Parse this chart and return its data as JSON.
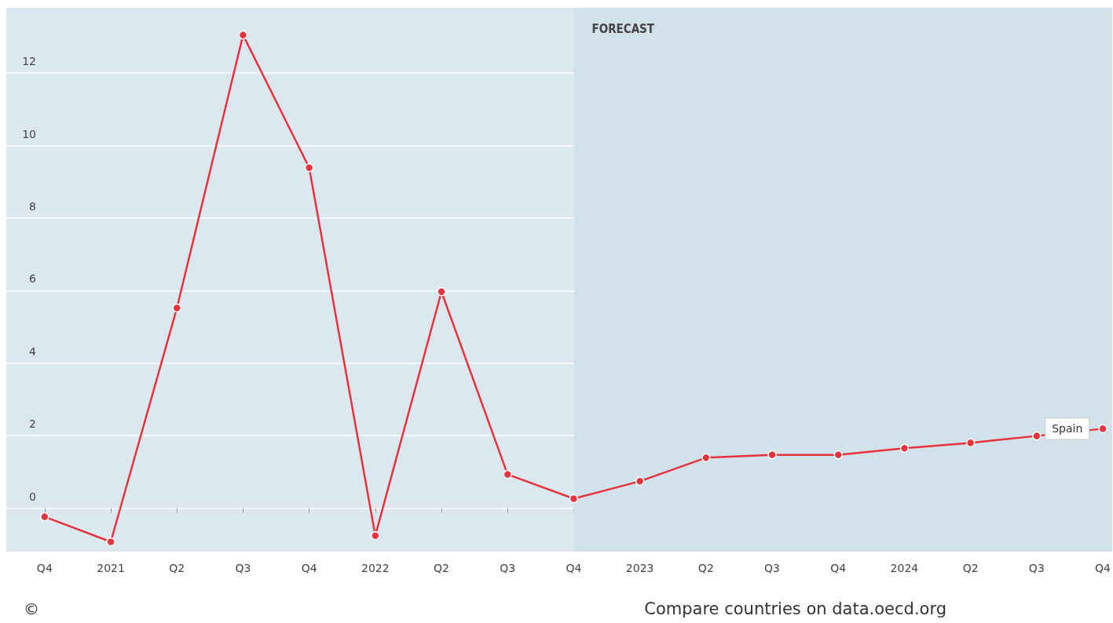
{
  "chart_data": {
    "type": "line",
    "x": [
      2020.75,
      2021,
      2021.25,
      2021.5,
      2021.75,
      2022,
      2022.25,
      2022.5,
      2022.75,
      2023,
      2023.25,
      2023.5,
      2023.75,
      2024,
      2024.25,
      2024.5,
      2024.75
    ],
    "series": [
      {
        "name": "Spain",
        "color": "#e8333d",
        "values": [
          -0.24,
          -0.93,
          5.52,
          13.05,
          9.39,
          -0.76,
          5.97,
          0.93,
          0.26,
          0.74,
          1.39,
          1.47,
          1.47,
          1.65,
          1.8,
          1.99,
          2.19
        ]
      }
    ],
    "xlim": [
      2020.605,
      2024.786
    ],
    "xticks": [
      {
        "value": 2020.75,
        "label": "Q4"
      },
      {
        "value": 2021,
        "label": "2021"
      },
      {
        "value": 2021.25,
        "label": "Q2"
      },
      {
        "value": 2021.5,
        "label": "Q3"
      },
      {
        "value": 2021.75,
        "label": "Q4"
      },
      {
        "value": 2022,
        "label": "2022"
      },
      {
        "value": 2022.25,
        "label": "Q2"
      },
      {
        "value": 2022.5,
        "label": "Q3"
      },
      {
        "value": 2022.75,
        "label": "Q4"
      },
      {
        "value": 2023,
        "label": "2023"
      },
      {
        "value": 2023.25,
        "label": "Q2"
      },
      {
        "value": 2023.5,
        "label": "Q3"
      },
      {
        "value": 2023.75,
        "label": "Q4"
      },
      {
        "value": 2024,
        "label": "2024"
      },
      {
        "value": 2024.25,
        "label": "Q2"
      },
      {
        "value": 2024.5,
        "label": "Q3"
      },
      {
        "value": 2024.75,
        "label": "Q4"
      }
    ],
    "ylim": [
      -1.2,
      13.8
    ],
    "yticks": [
      0,
      2,
      4,
      6,
      8,
      10,
      12
    ],
    "bands": [
      {
        "axis": "x",
        "from": 2022.75,
        "to": 2024.786,
        "label": "FORECAST",
        "color": "#d2e2eb"
      }
    ],
    "grid": "y",
    "marker": "circle",
    "line_style": "solid",
    "annotations": [
      "©",
      "Compare countries on data.oecd.org"
    ]
  }
}
